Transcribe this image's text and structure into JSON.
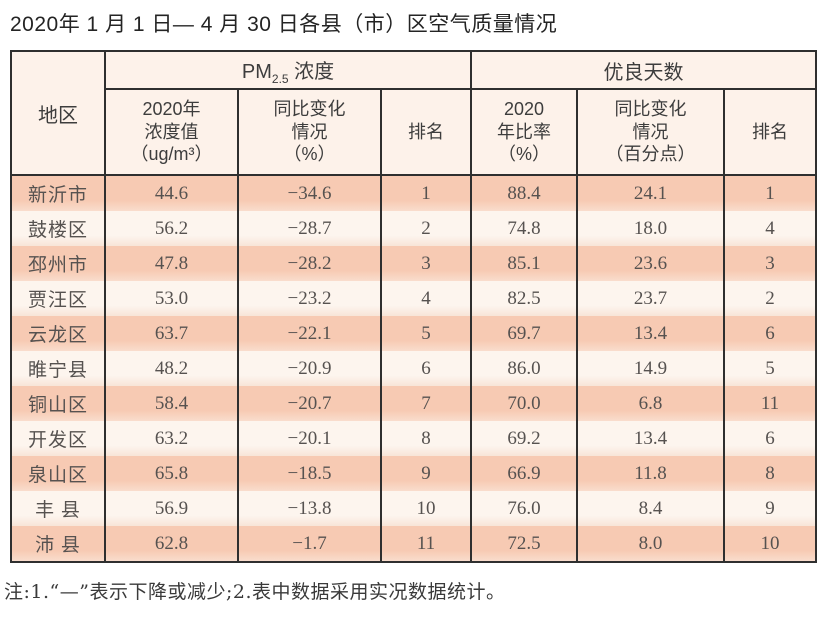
{
  "title": "2020年 1 月 1 日— 4 月 30 日各县（市）区空气质量情况",
  "footnote": "注:1.“—”表示下降或减少;2.表中数据采用实况数据统计。",
  "colors": {
    "row_odd": "#f7cab3",
    "row_even": "#fdf5ee",
    "header_bg": "#fdf2ea",
    "border": "#2f2f2f"
  },
  "table": {
    "region_header": "地区",
    "pm_group": {
      "prefix": "PM",
      "sub": "2.5",
      "suffix": " 浓度"
    },
    "days_group": "优良天数",
    "subheaders": {
      "pm_value": "2020年\n浓度值\n（ug/m³）",
      "pm_change": "同比变化\n情况\n（%）",
      "pm_rank": "排名",
      "days_ratio": "2020\n年比率\n（%）",
      "days_change": "同比变化\n情况\n（百分点）",
      "days_rank": "排名"
    },
    "rows": [
      {
        "region": "新沂市",
        "pm_value": "44.6",
        "pm_change": "−34.6",
        "pm_rank": "1",
        "days_ratio": "88.4",
        "days_change": "24.1",
        "days_rank": "1"
      },
      {
        "region": "鼓楼区",
        "pm_value": "56.2",
        "pm_change": "−28.7",
        "pm_rank": "2",
        "days_ratio": "74.8",
        "days_change": "18.0",
        "days_rank": "4"
      },
      {
        "region": "邳州市",
        "pm_value": "47.8",
        "pm_change": "−28.2",
        "pm_rank": "3",
        "days_ratio": "85.1",
        "days_change": "23.6",
        "days_rank": "3"
      },
      {
        "region": "贾汪区",
        "pm_value": "53.0",
        "pm_change": "−23.2",
        "pm_rank": "4",
        "days_ratio": "82.5",
        "days_change": "23.7",
        "days_rank": "2"
      },
      {
        "region": "云龙区",
        "pm_value": "63.7",
        "pm_change": "−22.1",
        "pm_rank": "5",
        "days_ratio": "69.7",
        "days_change": "13.4",
        "days_rank": "6"
      },
      {
        "region": "睢宁县",
        "pm_value": "48.2",
        "pm_change": "−20.9",
        "pm_rank": "6",
        "days_ratio": "86.0",
        "days_change": "14.9",
        "days_rank": "5"
      },
      {
        "region": "铜山区",
        "pm_value": "58.4",
        "pm_change": "−20.7",
        "pm_rank": "7",
        "days_ratio": "70.0",
        "days_change": "6.8",
        "days_rank": "11"
      },
      {
        "region": "开发区",
        "pm_value": "63.2",
        "pm_change": "−20.1",
        "pm_rank": "8",
        "days_ratio": "69.2",
        "days_change": "13.4",
        "days_rank": "6"
      },
      {
        "region": "泉山区",
        "pm_value": "65.8",
        "pm_change": "−18.5",
        "pm_rank": "9",
        "days_ratio": "66.9",
        "days_change": "11.8",
        "days_rank": "8"
      },
      {
        "region": "丰 县",
        "pm_value": "56.9",
        "pm_change": "−13.8",
        "pm_rank": "10",
        "days_ratio": "76.0",
        "days_change": "8.4",
        "days_rank": "9"
      },
      {
        "region": "沛 县",
        "pm_value": "62.8",
        "pm_change": "−1.7",
        "pm_rank": "11",
        "days_ratio": "72.5",
        "days_change": "8.0",
        "days_rank": "10"
      }
    ]
  }
}
